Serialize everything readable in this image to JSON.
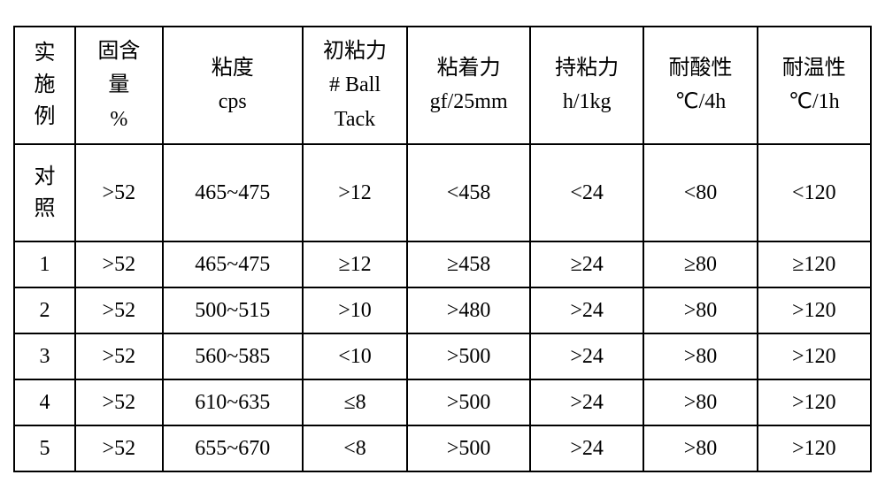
{
  "table": {
    "columns": [
      {
        "header_lines": [
          "实",
          "施",
          "例"
        ],
        "width_class": "col-0"
      },
      {
        "header_lines": [
          "固含",
          "量",
          "%"
        ],
        "width_class": "col-1"
      },
      {
        "header_lines": [
          "粘度",
          "cps"
        ],
        "width_class": "col-2"
      },
      {
        "header_lines": [
          "初粘力",
          "# Ball",
          "Tack"
        ],
        "width_class": "col-3"
      },
      {
        "header_lines": [
          "粘着力",
          "gf/25mm"
        ],
        "width_class": "col-4"
      },
      {
        "header_lines": [
          "持粘力",
          "h/1kg"
        ],
        "width_class": "col-5"
      },
      {
        "header_lines": [
          "耐酸性",
          "℃/4h"
        ],
        "width_class": "col-6"
      },
      {
        "header_lines": [
          "耐温性",
          "℃/1h"
        ],
        "width_class": "col-7"
      }
    ],
    "rows": [
      {
        "type": "control",
        "label_lines": [
          "对",
          "照"
        ],
        "cells": [
          ">52",
          "465~475",
          ">12",
          "<458",
          "<24",
          "<80",
          "<120"
        ]
      },
      {
        "type": "data",
        "label": "1",
        "cells": [
          ">52",
          "465~475",
          "≥12",
          "≥458",
          "≥24",
          "≥80",
          "≥120"
        ]
      },
      {
        "type": "data",
        "label": "2",
        "cells": [
          ">52",
          "500~515",
          ">10",
          ">480",
          ">24",
          ">80",
          ">120"
        ]
      },
      {
        "type": "data",
        "label": "3",
        "cells": [
          ">52",
          "560~585",
          "<10",
          ">500",
          ">24",
          ">80",
          ">120"
        ]
      },
      {
        "type": "data",
        "label": "4",
        "cells": [
          ">52",
          "610~635",
          "≤8",
          ">500",
          ">24",
          ">80",
          ">120"
        ]
      },
      {
        "type": "data",
        "label": "5",
        "cells": [
          ">52",
          "655~670",
          "<8",
          ">500",
          ">24",
          ">80",
          ">120"
        ]
      }
    ],
    "styling": {
      "border_color": "#000000",
      "border_width": 2,
      "background_color": "#ffffff",
      "text_color": "#000000",
      "font_size": 24,
      "font_family": "SimSun, Times New Roman, serif",
      "header_row_height": 130,
      "control_row_height": 110,
      "data_row_height": 52
    }
  }
}
